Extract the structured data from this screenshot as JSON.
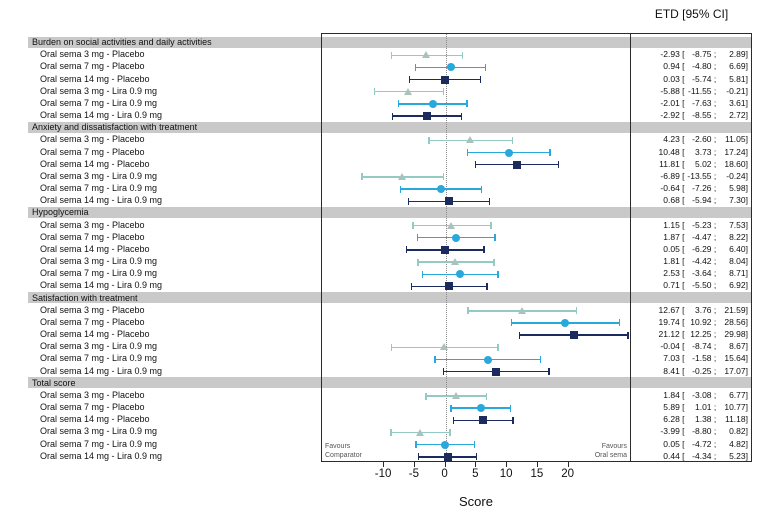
{
  "figure": {
    "etd_header": "ETD [95% CI]",
    "xlabel": "Score",
    "favours_left_line1": "Favours",
    "favours_left_line2": "Comparator",
    "favours_right_line1": "Favours",
    "favours_right_line2": "Oral sema"
  },
  "chart_data": {
    "type": "forest",
    "title": "ETD [95% CI]",
    "xlabel": "Score",
    "x_ticks": [
      -10,
      -5,
      0,
      5,
      10,
      15,
      20
    ],
    "xlim": [
      -20.1,
      30.3
    ],
    "zero_line": 0,
    "grid": false,
    "band_color": "#c9c9c9",
    "markers": {
      "3mg": {
        "shape": "triangle",
        "fill": "#a9c2be",
        "line": "#93cac3"
      },
      "7mg": {
        "shape": "circle",
        "fill": "#29a9db",
        "line": "#29a9db"
      },
      "14mg": {
        "shape": "square",
        "fill": "#1c2b5e",
        "line": "#1c2b5e"
      }
    },
    "dose_pattern": [
      "3mg",
      "7mg",
      "14mg",
      "3mg",
      "7mg",
      "14mg"
    ],
    "groups": [
      {
        "name": "Burden on social activities and daily activities",
        "rows": [
          {
            "label": "Oral sema 3 mg - Placebo",
            "est": -2.93,
            "lo": -8.75,
            "hi": 2.89
          },
          {
            "label": "Oral sema 7 mg - Placebo",
            "est": 0.94,
            "lo": -4.8,
            "hi": 6.69
          },
          {
            "label": "Oral sema 14 mg - Placebo",
            "est": 0.03,
            "lo": -5.74,
            "hi": 5.81
          },
          {
            "label": "Oral sema 3 mg - Lira 0.9 mg",
            "est": -5.88,
            "lo": -11.55,
            "hi": -0.21
          },
          {
            "label": "Oral sema 7 mg - Lira 0.9 mg",
            "est": -2.01,
            "lo": -7.63,
            "hi": 3.61
          },
          {
            "label": "Oral sema 14 mg - Lira 0.9 mg",
            "est": -2.92,
            "lo": -8.55,
            "hi": 2.72
          }
        ]
      },
      {
        "name": "Anxiety and dissatisfaction with treatment",
        "rows": [
          {
            "label": "Oral sema 3 mg - Placebo",
            "est": 4.23,
            "lo": -2.6,
            "hi": 11.05
          },
          {
            "label": "Oral sema 7 mg - Placebo",
            "est": 10.48,
            "lo": 3.73,
            "hi": 17.24
          },
          {
            "label": "Oral sema 14 mg - Placebo",
            "est": 11.81,
            "lo": 5.02,
            "hi": 18.6
          },
          {
            "label": "Oral sema 3 mg - Lira 0.9 mg",
            "est": -6.89,
            "lo": -13.55,
            "hi": -0.24
          },
          {
            "label": "Oral sema 7 mg - Lira 0.9 mg",
            "est": -0.64,
            "lo": -7.26,
            "hi": 5.98
          },
          {
            "label": "Oral sema 14 mg - Lira 0.9 mg",
            "est": 0.68,
            "lo": -5.94,
            "hi": 7.3
          }
        ]
      },
      {
        "name": "Hypoglycemia",
        "rows": [
          {
            "label": "Oral sema 3 mg - Placebo",
            "est": 1.15,
            "lo": -5.23,
            "hi": 7.53
          },
          {
            "label": "Oral sema 7 mg - Placebo",
            "est": 1.87,
            "lo": -4.47,
            "hi": 8.22
          },
          {
            "label": "Oral sema 14 mg - Placebo",
            "est": 0.05,
            "lo": -6.29,
            "hi": 6.4
          },
          {
            "label": "Oral sema 3 mg - Lira 0.9 mg",
            "est": 1.81,
            "lo": -4.42,
            "hi": 8.04
          },
          {
            "label": "Oral sema 7 mg - Lira 0.9 mg",
            "est": 2.53,
            "lo": -3.64,
            "hi": 8.71
          },
          {
            "label": "Oral sema 14 mg - Lira 0.9 mg",
            "est": 0.71,
            "lo": -5.5,
            "hi": 6.92
          }
        ]
      },
      {
        "name": "Satisfaction with treatment",
        "rows": [
          {
            "label": "Oral sema 3 mg - Placebo",
            "est": 12.67,
            "lo": 3.76,
            "hi": 21.59
          },
          {
            "label": "Oral sema 7 mg - Placebo",
            "est": 19.74,
            "lo": 10.92,
            "hi": 28.56
          },
          {
            "label": "Oral sema 14 mg - Placebo",
            "est": 21.12,
            "lo": 12.25,
            "hi": 29.98
          },
          {
            "label": "Oral sema 3 mg - Lira 0.9 mg",
            "est": -0.04,
            "lo": -8.74,
            "hi": 8.67
          },
          {
            "label": "Oral sema 7 mg - Lira 0.9 mg",
            "est": 7.03,
            "lo": -1.58,
            "hi": 15.64
          },
          {
            "label": "Oral sema 14 mg - Lira 0.9 mg",
            "est": 8.41,
            "lo": -0.25,
            "hi": 17.07
          }
        ]
      },
      {
        "name": "Total score",
        "rows": [
          {
            "label": "Oral sema 3 mg - Placebo",
            "est": 1.84,
            "lo": -3.08,
            "hi": 6.77
          },
          {
            "label": "Oral sema 7 mg - Placebo",
            "est": 5.89,
            "lo": 1.01,
            "hi": 10.77
          },
          {
            "label": "Oral sema 14 mg - Placebo",
            "est": 6.28,
            "lo": 1.38,
            "hi": 11.18
          },
          {
            "label": "Oral sema 3 mg - Lira 0.9 mg",
            "est": -3.99,
            "lo": -8.8,
            "hi": 0.82
          },
          {
            "label": "Oral sema 7 mg - Lira 0.9 mg",
            "est": 0.05,
            "lo": -4.72,
            "hi": 4.82
          },
          {
            "label": "Oral sema 14 mg - Lira 0.9 mg",
            "est": 0.44,
            "lo": -4.34,
            "hi": 5.23
          }
        ]
      }
    ]
  }
}
